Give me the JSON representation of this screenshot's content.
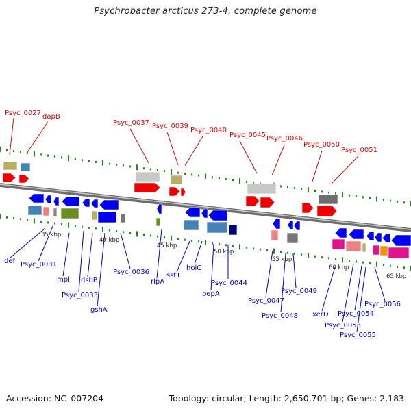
{
  "title": "Psychrobacter arcticus 273-4, complete genome",
  "footer": {
    "accession": "Accession: NC_007204",
    "topology": "Topology: circular; Length: 2,650,701 bp; Genes: 2,183"
  },
  "colors": {
    "red_label": "#e00000",
    "blue_label": "#0000c8",
    "ruler": "#1e8a1e",
    "backbone": "#8c8c8c"
  },
  "kbp_ticks": [
    "35 kbp",
    "40 kbp",
    "45 kbp",
    "50 kbp",
    "55 kbp",
    "60 kbp",
    "65 kbp"
  ],
  "top_genes": [
    "Psyc_0027",
    "dapB",
    "Psyc_0037",
    "Psyc_0039",
    "Psyc_0040",
    "Psyc_0045",
    "Psyc_0046",
    "Psyc_0050",
    "Psyc_0051"
  ],
  "bottom_genes": [
    "def",
    "Psyc_0031",
    "mpl",
    "Psyc_0033",
    "dsbB",
    "gshA",
    "Psyc_0036",
    "rlpA",
    "sstT",
    "holC",
    "pepA",
    "Psyc_0044",
    "Psyc_0047",
    "Psyc_0048",
    "Psyc_0049",
    "xerD",
    "Psyc_0053",
    "Psyc_0054",
    "Psyc_0055",
    "Psyc_0056"
  ]
}
